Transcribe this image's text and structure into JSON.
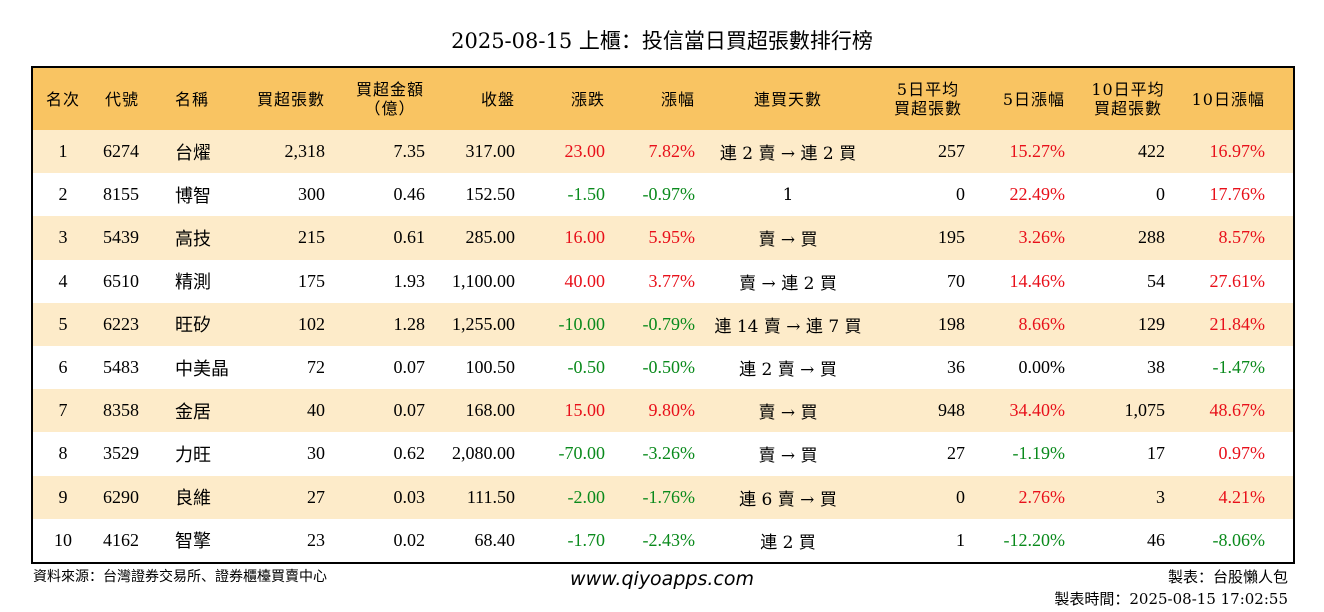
{
  "title": "2025-08-15 上櫃：投信當日買超張數排行榜",
  "headers": {
    "rank": "名次",
    "code": "代號",
    "name": "名稱",
    "buy_shares": "買超張數",
    "buy_amount_line1": "買超金額",
    "buy_amount_line2": "（億）",
    "close": "收盤",
    "change": "漲跌",
    "change_pct": "漲幅",
    "streak": "連買天數",
    "avg5_line1": "5日平均",
    "avg5_line2": "買超張數",
    "pct5": "5日漲幅",
    "avg10_line1": "10日平均",
    "avg10_line2": "買超張數",
    "pct10": "10日漲幅"
  },
  "rows": [
    {
      "rank": "1",
      "code": "6274",
      "name": "台燿",
      "buy": "2,318",
      "amount": "7.35",
      "close": "317.00",
      "change": "23.00",
      "pct": "7.82%",
      "streak": "連 2 賣 → 連 2 買",
      "avg5": "257",
      "pct5": "15.27%",
      "avg10": "422",
      "pct10": "16.97%",
      "c_change": "red",
      "c_pct": "red",
      "c_pct5": "red",
      "c_pct10": "red"
    },
    {
      "rank": "2",
      "code": "8155",
      "name": "博智",
      "buy": "300",
      "amount": "0.46",
      "close": "152.50",
      "change": "-1.50",
      "pct": "-0.97%",
      "streak": "1",
      "avg5": "0",
      "pct5": "22.49%",
      "avg10": "0",
      "pct10": "17.76%",
      "c_change": "green",
      "c_pct": "green",
      "c_pct5": "red",
      "c_pct10": "red"
    },
    {
      "rank": "3",
      "code": "5439",
      "name": "高技",
      "buy": "215",
      "amount": "0.61",
      "close": "285.00",
      "change": "16.00",
      "pct": "5.95%",
      "streak": "賣 → 買",
      "avg5": "195",
      "pct5": "3.26%",
      "avg10": "288",
      "pct10": "8.57%",
      "c_change": "red",
      "c_pct": "red",
      "c_pct5": "red",
      "c_pct10": "red"
    },
    {
      "rank": "4",
      "code": "6510",
      "name": "精測",
      "buy": "175",
      "amount": "1.93",
      "close": "1,100.00",
      "change": "40.00",
      "pct": "3.77%",
      "streak": "賣 → 連 2 買",
      "avg5": "70",
      "pct5": "14.46%",
      "avg10": "54",
      "pct10": "27.61%",
      "c_change": "red",
      "c_pct": "red",
      "c_pct5": "red",
      "c_pct10": "red"
    },
    {
      "rank": "5",
      "code": "6223",
      "name": "旺矽",
      "buy": "102",
      "amount": "1.28",
      "close": "1,255.00",
      "change": "-10.00",
      "pct": "-0.79%",
      "streak": "連 14 賣 → 連 7 買",
      "avg5": "198",
      "pct5": "8.66%",
      "avg10": "129",
      "pct10": "21.84%",
      "c_change": "green",
      "c_pct": "green",
      "c_pct5": "red",
      "c_pct10": "red"
    },
    {
      "rank": "6",
      "code": "5483",
      "name": "中美晶",
      "buy": "72",
      "amount": "0.07",
      "close": "100.50",
      "change": "-0.50",
      "pct": "-0.50%",
      "streak": "連 2 賣 → 買",
      "avg5": "36",
      "pct5": "0.00%",
      "avg10": "38",
      "pct10": "-1.47%",
      "c_change": "green",
      "c_pct": "green",
      "c_pct5": "black",
      "c_pct10": "green"
    },
    {
      "rank": "7",
      "code": "8358",
      "name": "金居",
      "buy": "40",
      "amount": "0.07",
      "close": "168.00",
      "change": "15.00",
      "pct": "9.80%",
      "streak": "賣 → 買",
      "avg5": "948",
      "pct5": "34.40%",
      "avg10": "1,075",
      "pct10": "48.67%",
      "c_change": "red",
      "c_pct": "red",
      "c_pct5": "red",
      "c_pct10": "red"
    },
    {
      "rank": "8",
      "code": "3529",
      "name": "力旺",
      "buy": "30",
      "amount": "0.62",
      "close": "2,080.00",
      "change": "-70.00",
      "pct": "-3.26%",
      "streak": "賣 → 買",
      "avg5": "27",
      "pct5": "-1.19%",
      "avg10": "17",
      "pct10": "0.97%",
      "c_change": "green",
      "c_pct": "green",
      "c_pct5": "green",
      "c_pct10": "red"
    },
    {
      "rank": "9",
      "code": "6290",
      "name": "良維",
      "buy": "27",
      "amount": "0.03",
      "close": "111.50",
      "change": "-2.00",
      "pct": "-1.76%",
      "streak": "連 6 賣 → 買",
      "avg5": "0",
      "pct5": "2.76%",
      "avg10": "3",
      "pct10": "4.21%",
      "c_change": "green",
      "c_pct": "green",
      "c_pct5": "red",
      "c_pct10": "red"
    },
    {
      "rank": "10",
      "code": "4162",
      "name": "智擎",
      "buy": "23",
      "amount": "0.02",
      "close": "68.40",
      "change": "-1.70",
      "pct": "-2.43%",
      "streak": "連 2 買",
      "avg5": "1",
      "pct5": "-12.20%",
      "avg10": "46",
      "pct10": "-8.06%",
      "c_change": "green",
      "c_pct": "green",
      "c_pct5": "green",
      "c_pct10": "green"
    }
  ],
  "footer": {
    "source": "資料來源：台灣證券交易所、證券櫃檯買賣中心",
    "website": "www.qiyoapps.com",
    "maker": "製表：台股懶人包",
    "made_time": "製表時間：2025-08-15 17:02:55"
  },
  "colors": {
    "header_bg": "#f9c462",
    "odd_row_bg": "#fdebc9",
    "up": "#e8101a",
    "down": "#0a8a1c"
  }
}
